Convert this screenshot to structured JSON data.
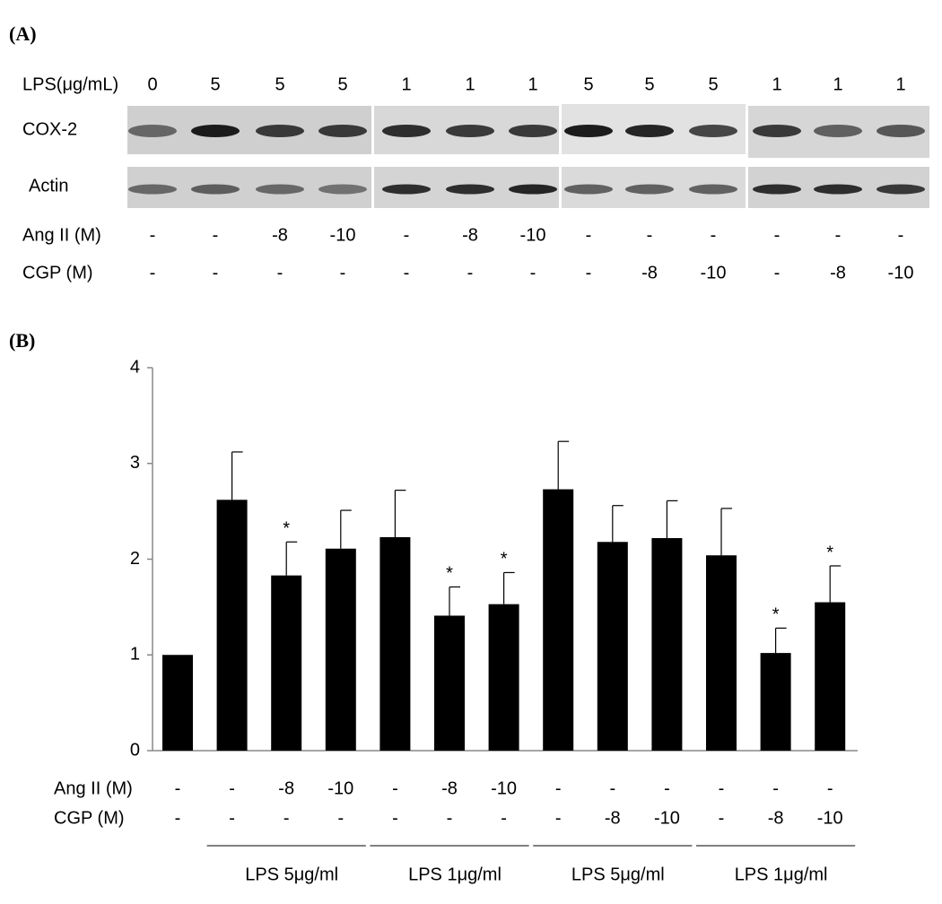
{
  "panel_a": {
    "label": "(A)",
    "lps_label": "LPS(μg/mL)",
    "lps": [
      0,
      5,
      5,
      5,
      1,
      1,
      1,
      5,
      5,
      5,
      1,
      1,
      1
    ],
    "rows": [
      {
        "label": "COX-2"
      },
      {
        "label": "Actin"
      }
    ],
    "treatments": [
      {
        "label": "Ang II (M)",
        "values": [
          "-",
          "-",
          -8,
          -10,
          "-",
          -8,
          -10,
          "-",
          "-",
          "-",
          "-",
          "-",
          "-"
        ]
      },
      {
        "label": "CGP (M)",
        "values": [
          "-",
          "-",
          "-",
          "-",
          "-",
          "-",
          "-",
          "-",
          -8,
          -10,
          "-",
          -8,
          -10
        ]
      }
    ]
  },
  "chart_data": {
    "type": "bar",
    "panel_label": "(B)",
    "categories": [
      null,
      null,
      null,
      null,
      null,
      null,
      null,
      null,
      null,
      null,
      null,
      null,
      null
    ],
    "values": [
      1.0,
      2.62,
      1.83,
      2.11,
      2.23,
      1.41,
      1.53,
      2.73,
      2.18,
      2.22,
      2.04,
      1.02,
      1.55
    ],
    "errors": [
      null,
      0.5,
      0.35,
      0.4,
      0.49,
      0.3,
      0.33,
      0.5,
      0.38,
      0.39,
      0.49,
      0.26,
      0.38
    ],
    "significance": [
      null,
      null,
      "*",
      null,
      null,
      "*",
      "*",
      null,
      null,
      null,
      null,
      "*",
      "*"
    ],
    "color": "#000000",
    "ylim": [
      0,
      4
    ],
    "yticks": [
      0,
      1,
      2,
      3,
      4
    ],
    "grid": false,
    "condition_rows": [
      {
        "label": "Ang II (M)",
        "values": [
          "-",
          "-",
          -8,
          -10,
          "-",
          -8,
          -10,
          "-",
          "-",
          "-",
          "-",
          "-",
          "-"
        ]
      },
      {
        "label": "CGP (M)",
        "values": [
          "-",
          "-",
          "-",
          "-",
          "-",
          "-",
          "-",
          "-",
          -8,
          -10,
          "-",
          -8,
          -10
        ]
      }
    ],
    "groups": [
      "LPS 5μg/ml",
      "LPS 1μg/ml",
      "LPS 5μg/ml",
      "LPS 1μg/ml"
    ]
  }
}
